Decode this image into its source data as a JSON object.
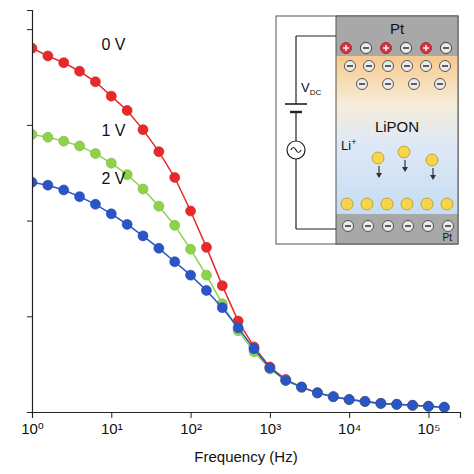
{
  "chart_data": {
    "type": "line",
    "x_label": "Frequency (Hz)",
    "log": "x",
    "grid": false,
    "tick_labels": "x",
    "marker": "circle",
    "line_style": "solid",
    "x": [
      1,
      1.585,
      2.512,
      3.981,
      6.31,
      10,
      15.85,
      25.12,
      39.81,
      63.1,
      100,
      158.5,
      251.2,
      398.1,
      631,
      1000,
      1585,
      2512,
      3981,
      6310,
      10000,
      15850,
      25120,
      39810,
      63100,
      100000,
      158500
    ],
    "series": [
      {
        "name": "0 V",
        "color": "#e8292b",
        "values": [
          3.8,
          3.72,
          3.65,
          3.56,
          3.45,
          3.3,
          3.15,
          2.95,
          2.72,
          2.45,
          2.1,
          1.72,
          1.32,
          0.95,
          0.68,
          0.47,
          0.34,
          0.26,
          0.2,
          0.16,
          0.13,
          0.11,
          0.09,
          0.08,
          0.07,
          0.06,
          0.05
        ]
      },
      {
        "name": "1 V",
        "color": "#8ed24a",
        "values": [
          2.9,
          2.87,
          2.83,
          2.78,
          2.7,
          2.6,
          2.48,
          2.33,
          2.15,
          1.95,
          1.7,
          1.43,
          1.13,
          0.85,
          0.63,
          0.45,
          0.33,
          0.26,
          0.2,
          0.16,
          0.13,
          0.11,
          0.09,
          0.08,
          0.07,
          0.06,
          0.05
        ]
      },
      {
        "name": "2 V",
        "color": "#2a55c8",
        "values": [
          2.4,
          2.37,
          2.32,
          2.25,
          2.17,
          2.07,
          1.96,
          1.84,
          1.71,
          1.57,
          1.43,
          1.27,
          1.09,
          0.88,
          0.66,
          0.46,
          0.33,
          0.26,
          0.2,
          0.16,
          0.13,
          0.11,
          0.09,
          0.08,
          0.07,
          0.06,
          0.05
        ]
      }
    ],
    "xlim": [
      1,
      250000
    ],
    "xticks": [
      {
        "value": 1,
        "label": "10⁰"
      },
      {
        "value": 10,
        "label": "10¹"
      },
      {
        "value": 100,
        "label": "10²"
      },
      {
        "value": 1000,
        "label": "10³"
      },
      {
        "value": 10000,
        "label": "10⁴"
      },
      {
        "value": 100000,
        "label": "10⁵"
      }
    ],
    "ylim": [
      0,
      4.2
    ],
    "yticks": [
      0,
      1,
      2,
      3,
      4
    ],
    "inset": {
      "top_label": "Pt",
      "bottom_label": "Pt",
      "middle_label": "LiPON",
      "voltage_label": "V",
      "voltage_subscript": "DC",
      "ion_label": "Li",
      "ion_charge": "+"
    }
  }
}
